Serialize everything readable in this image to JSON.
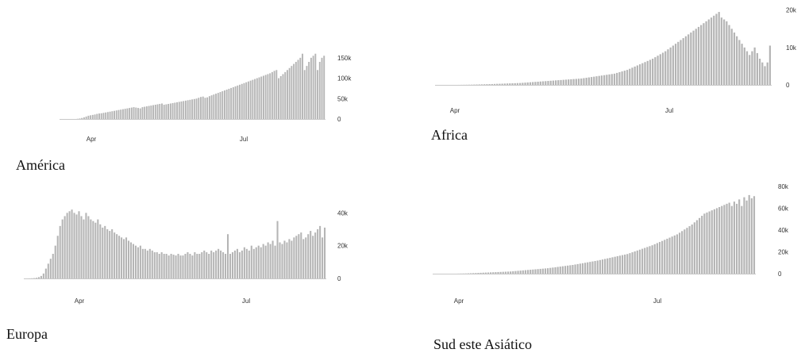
{
  "colors": {
    "bar": "#b5b5b5",
    "text": "#333333"
  },
  "chart_data": [
    {
      "type": "bar",
      "title": "América",
      "x_range": [
        "2020-03-01",
        "2020-08-10"
      ],
      "xticks": [
        "Apr",
        "Jul"
      ],
      "yticks": [
        "150k",
        "100k",
        "50k",
        "0"
      ],
      "ylim": [
        0,
        175000
      ],
      "values": [
        0,
        0,
        0,
        0,
        0,
        0,
        0,
        0,
        500,
        1200,
        2500,
        4000,
        6000,
        8000,
        9000,
        10000,
        11000,
        12500,
        13500,
        14000,
        15000,
        16000,
        17000,
        18000,
        19000,
        20000,
        21000,
        22000,
        23000,
        24000,
        25000,
        26000,
        27000,
        28000,
        29000,
        28000,
        27000,
        26000,
        29000,
        30000,
        31000,
        32000,
        33000,
        34000,
        35000,
        36000,
        37000,
        38000,
        35000,
        36000,
        37000,
        38000,
        39000,
        40000,
        41000,
        42000,
        43000,
        44000,
        45000,
        46000,
        47000,
        48000,
        49000,
        50000,
        52000,
        54000,
        55000,
        52000,
        53000,
        56000,
        58000,
        60000,
        62000,
        64000,
        66000,
        68000,
        70000,
        72000,
        74000,
        76000,
        78000,
        80000,
        82000,
        84000,
        86000,
        88000,
        90000,
        92000,
        94000,
        96000,
        98000,
        100000,
        102000,
        104000,
        106000,
        108000,
        110000,
        112000,
        115000,
        118000,
        120000,
        100000,
        105000,
        110000,
        115000,
        120000,
        125000,
        130000,
        135000,
        140000,
        145000,
        150000,
        160000,
        120000,
        130000,
        140000,
        150000,
        155000,
        160000,
        120000,
        140000,
        150000,
        155000
      ]
    },
    {
      "type": "bar",
      "title": "Africa",
      "x_range": [
        "2020-03-01",
        "2020-08-10"
      ],
      "xticks": [
        "Apr",
        "Jul"
      ],
      "yticks": [
        "20k",
        "10k",
        "0"
      ],
      "ylim": [
        0,
        21000
      ],
      "values": [
        0,
        0,
        0,
        0,
        0,
        0,
        0,
        0,
        0,
        10,
        20,
        30,
        40,
        50,
        60,
        80,
        100,
        120,
        140,
        160,
        180,
        200,
        220,
        250,
        280,
        300,
        320,
        350,
        380,
        400,
        420,
        450,
        480,
        500,
        550,
        600,
        650,
        700,
        750,
        800,
        850,
        900,
        950,
        1000,
        1050,
        1100,
        1150,
        1200,
        1250,
        1300,
        1350,
        1400,
        1450,
        1500,
        1550,
        1600,
        1650,
        1700,
        1800,
        1900,
        2000,
        2100,
        2200,
        2300,
        2400,
        2500,
        2600,
        2700,
        2800,
        2900,
        3000,
        3200,
        3400,
        3600,
        3800,
        4000,
        4300,
        4600,
        4900,
        5200,
        5500,
        5800,
        6100,
        6400,
        6700,
        7000,
        7400,
        7800,
        8200,
        8600,
        9000,
        9500,
        10000,
        10500,
        11000,
        11500,
        12000,
        12500,
        13000,
        13500,
        14000,
        14500,
        15000,
        15500,
        16000,
        16500,
        17000,
        17500,
        18000,
        18500,
        19000,
        19500,
        18000,
        17500,
        17000,
        16000,
        15000,
        14000,
        13000,
        12000,
        11000,
        10000,
        9000,
        8000,
        9000,
        10000,
        8500,
        7000,
        6000,
        5000,
        6000,
        10500
      ]
    },
    {
      "type": "bar",
      "title": "Europa",
      "x_range": [
        "2020-03-01",
        "2020-08-10"
      ],
      "xticks": [
        "Apr",
        "Jul"
      ],
      "yticks": [
        "40k",
        "20k",
        "0"
      ],
      "ylim": [
        0,
        45000
      ],
      "values": [
        0,
        0,
        50,
        100,
        200,
        400,
        800,
        1500,
        3000,
        6000,
        9000,
        12000,
        15000,
        20000,
        26000,
        32000,
        36000,
        38000,
        40000,
        41000,
        42000,
        40000,
        39000,
        41000,
        38000,
        36000,
        40000,
        38000,
        36000,
        35000,
        34000,
        36000,
        33000,
        31000,
        32000,
        30000,
        29000,
        30000,
        28000,
        27000,
        26000,
        25000,
        24000,
        25000,
        23000,
        22000,
        21000,
        20000,
        19000,
        20000,
        18000,
        18000,
        17000,
        18000,
        17000,
        16000,
        16000,
        15000,
        16000,
        15000,
        15000,
        14000,
        15000,
        14500,
        14000,
        15000,
        14000,
        14000,
        15000,
        16000,
        15000,
        14000,
        16000,
        15000,
        15000,
        16000,
        17000,
        16000,
        15000,
        17000,
        16000,
        17000,
        18000,
        17000,
        16000,
        15000,
        27000,
        15000,
        16000,
        17000,
        18000,
        16000,
        17000,
        19000,
        18000,
        17000,
        20000,
        18000,
        19000,
        20000,
        19000,
        21000,
        20000,
        22000,
        21000,
        23000,
        20000,
        35000,
        22000,
        21000,
        23000,
        22000,
        24000,
        23000,
        25000,
        26000,
        27000,
        28000,
        24000,
        25000,
        27000,
        29000,
        26000,
        28000,
        30000,
        32000,
        25000,
        31000
      ]
    },
    {
      "type": "bar",
      "title": "Sud este Asiático",
      "x_range": [
        "2020-03-01",
        "2020-08-10"
      ],
      "xticks": [
        "Apr",
        "Jul"
      ],
      "yticks": [
        "80k",
        "60k",
        "40k",
        "20k",
        "0"
      ],
      "ylim": [
        0,
        85000
      ],
      "values": [
        0,
        0,
        0,
        0,
        0,
        0,
        0,
        0,
        0,
        0,
        50,
        100,
        150,
        200,
        300,
        400,
        500,
        600,
        700,
        800,
        900,
        1000,
        1100,
        1200,
        1300,
        1400,
        1500,
        1600,
        1700,
        1800,
        1900,
        2000,
        2200,
        2400,
        2600,
        2800,
        3000,
        3200,
        3400,
        3600,
        3800,
        4000,
        4200,
        4400,
        4600,
        4800,
        5000,
        5300,
        5600,
        5900,
        6200,
        6500,
        6800,
        7100,
        7400,
        7700,
        8000,
        8400,
        8800,
        9200,
        9600,
        10000,
        10400,
        10800,
        11200,
        11600,
        12000,
        12500,
        13000,
        13500,
        14000,
        14500,
        15000,
        15500,
        16000,
        16500,
        17000,
        17500,
        18000,
        18800,
        19600,
        20400,
        21200,
        22000,
        22800,
        23600,
        24400,
        25200,
        26000,
        27000,
        28000,
        29000,
        30000,
        31000,
        32000,
        33000,
        34000,
        35000,
        36000,
        37500,
        39000,
        40500,
        42000,
        43500,
        45000,
        47000,
        49000,
        51000,
        53000,
        55000,
        56000,
        57000,
        58000,
        59000,
        60000,
        61000,
        62000,
        63000,
        64000,
        65000,
        62000,
        66000,
        64000,
        68000,
        62000,
        70000,
        67000,
        72000,
        69000,
        71000
      ]
    }
  ],
  "captions": {
    "america": "América",
    "africa": "Africa",
    "europa": "Europa",
    "sea": "Sud este Asiático"
  }
}
